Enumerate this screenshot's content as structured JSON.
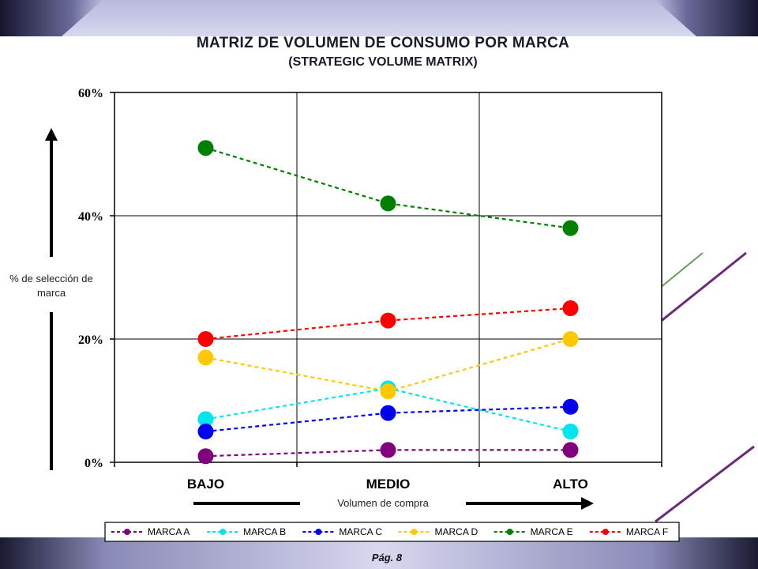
{
  "title": "MATRIZ DE VOLUMEN DE CONSUMO POR MARCA",
  "subtitle": "(STRATEGIC VOLUME MATRIX)",
  "footer": "Pág. 8",
  "chart_data": {
    "type": "line",
    "title": "MATRIZ DE VOLUMEN DE CONSUMO POR MARCA",
    "subtitle": "(STRATEGIC VOLUME MATRIX)",
    "xlabel": "Volumen de compra",
    "ylabel": "% de selección de marca",
    "categories": [
      "BAJO",
      "MEDIO",
      "ALTO"
    ],
    "ylim": [
      0,
      60
    ],
    "yticks": [
      0,
      20,
      40,
      60
    ],
    "ytick_labels": [
      "0%",
      "20%",
      "40%",
      "60%"
    ],
    "grid": true,
    "legend_position": "bottom",
    "series": [
      {
        "name": "MARCA A",
        "color": "#800080",
        "values": [
          1,
          2,
          2
        ]
      },
      {
        "name": "MARCA B",
        "color": "#00e5ee",
        "values": [
          7,
          12,
          5
        ]
      },
      {
        "name": "MARCA C",
        "color": "#0000ee",
        "values": [
          5,
          8,
          9
        ]
      },
      {
        "name": "MARCA D",
        "color": "#ffc800",
        "values": [
          17,
          11.5,
          20
        ]
      },
      {
        "name": "MARCA E",
        "color": "#008000",
        "values": [
          51,
          42,
          38
        ]
      },
      {
        "name": "MARCA F",
        "color": "#ff0000",
        "values": [
          20,
          23,
          25
        ]
      }
    ]
  }
}
